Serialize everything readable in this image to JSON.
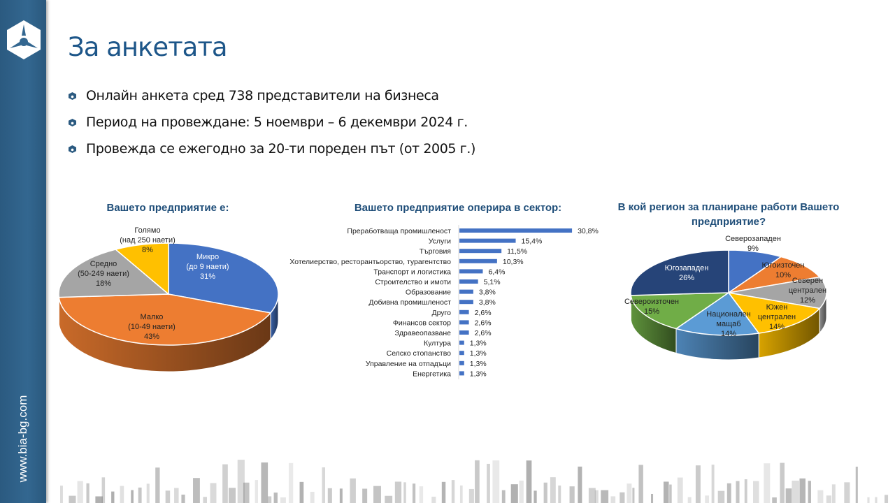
{
  "sidebar": {
    "website": "www.bia-bg.com"
  },
  "title": "За анкетата",
  "bullets": [
    "Онлайн анкета сред 738 представители на бизнеса",
    "Период на провеждане: 5 ноември – 6 декември 2024 г.",
    "Провежда се ежегодно за 20-ти пореден път (от 2005 г.)"
  ],
  "chart_data": [
    {
      "type": "pie",
      "title": "Вашето предприятие е:",
      "slices": [
        {
          "label": "Микро",
          "sub": "(до 9 наети)",
          "value": 31,
          "pct": "31%",
          "color": "#4472c4"
        },
        {
          "label": "Малко",
          "sub": "(10-49 наети)",
          "value": 43,
          "pct": "43%",
          "color": "#ed7d31"
        },
        {
          "label": "Средно",
          "sub": "(50-249 наети)",
          "value": 18,
          "pct": "18%",
          "color": "#a5a5a5"
        },
        {
          "label": "Голямо",
          "sub": "(над 250 наети)",
          "value": 8,
          "pct": "8%",
          "color": "#ffc000"
        }
      ]
    },
    {
      "type": "bar",
      "title": "Вашето предприятие оперира в сектор:",
      "categories": [
        "Преработваща промишленост",
        "Услуги",
        "Търговия",
        "Хотелиерство, ресторантьорство, турагентство",
        "Транспорт и логистика",
        "Строителство и имоти",
        "Образование",
        "Добивна промишленост",
        "Друго",
        "Финансов сектор",
        "Здравеопазване",
        "Култура",
        "Селско стопанство",
        "Управление на отпадъци",
        "Енергетика"
      ],
      "values": [
        30.8,
        15.4,
        11.5,
        10.3,
        6.4,
        5.1,
        3.8,
        3.8,
        2.6,
        2.6,
        2.6,
        1.3,
        1.3,
        1.3,
        1.3
      ],
      "labels": [
        "30,8%",
        "15,4%",
        "11,5%",
        "10,3%",
        "6,4%",
        "5,1%",
        "3,8%",
        "3,8%",
        "2,6%",
        "2,6%",
        "2,6%",
        "1,3%",
        "1,3%",
        "1,3%",
        "1,3%"
      ],
      "color": "#4472c4"
    },
    {
      "type": "pie",
      "title": "В кой регион за планиране работи Вашето предприятие?",
      "slices": [
        {
          "label": "Северозападен",
          "sub": "",
          "value": 9,
          "pct": "9%",
          "color": "#4472c4"
        },
        {
          "label": "Югоизточен",
          "sub": "",
          "value": 10,
          "pct": "10%",
          "color": "#ed7d31"
        },
        {
          "label": "Северен",
          "sub": "централен",
          "value": 12,
          "pct": "12%",
          "color": "#a5a5a5"
        },
        {
          "label": "Южен",
          "sub": "централен",
          "value": 14,
          "pct": "14%",
          "color": "#ffc000"
        },
        {
          "label": "Национален",
          "sub": "мащаб",
          "value": 14,
          "pct": "14%",
          "color": "#5b9bd5"
        },
        {
          "label": "Североизточен",
          "sub": "",
          "value": 15,
          "pct": "15%",
          "color": "#70ad47"
        },
        {
          "label": "Югозападен",
          "sub": "",
          "value": 26,
          "pct": "26%",
          "color": "#264478"
        }
      ]
    }
  ]
}
